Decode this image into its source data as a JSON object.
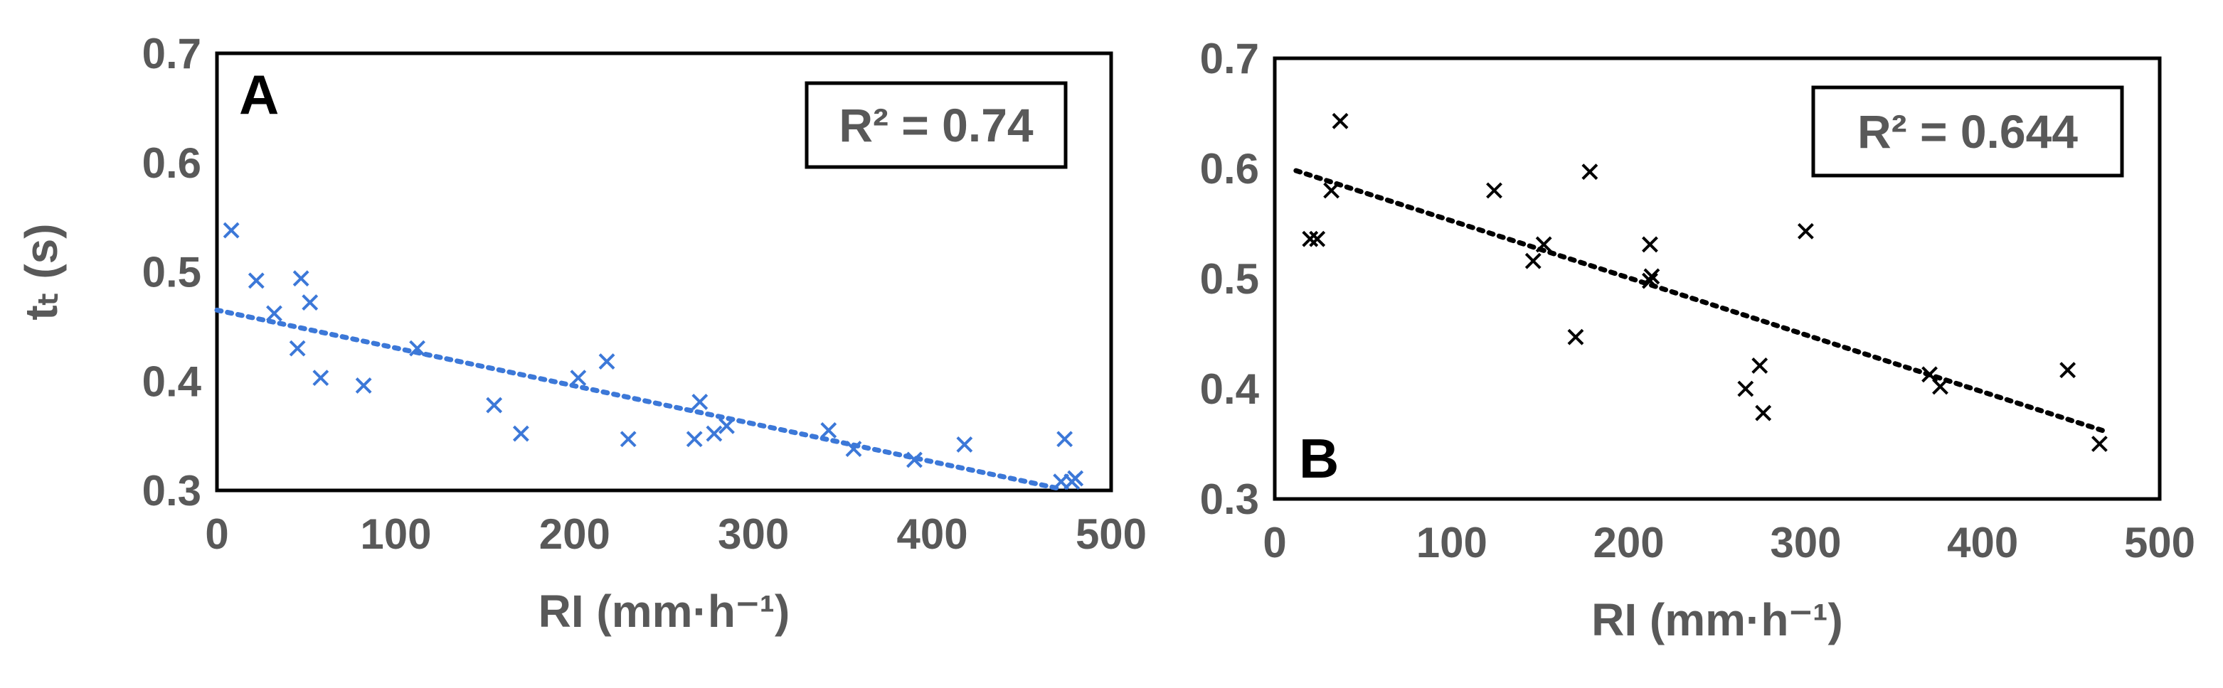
{
  "chart_data": [
    {
      "type": "scatter",
      "panel_label": "A",
      "annotation": "R² = 0.74",
      "xlabel": "RI (mm·h⁻¹)",
      "ylabel": "tₜ (s)",
      "xlim": [
        0,
        500
      ],
      "ylim": [
        0.3,
        0.7
      ],
      "x_ticks": [
        "0",
        "100",
        "200",
        "300",
        "400",
        "500"
      ],
      "y_ticks": [
        "0.3",
        "0.4",
        "0.5",
        "0.6",
        "0.7"
      ],
      "grid": false,
      "legend": "none",
      "marker_color": "#3C78D8",
      "trendline": {
        "type": "linear",
        "style": "dotted",
        "x": [
          0,
          470
        ],
        "y": [
          0.465,
          0.302
        ]
      },
      "series": [
        {
          "x": [
            8,
            22,
            32,
            45,
            47,
            52,
            58,
            82,
            112,
            155,
            170,
            202,
            218,
            230,
            267,
            270,
            278,
            285,
            342,
            356,
            390,
            418,
            472,
            474,
            478,
            480
          ],
          "y": [
            0.538,
            0.492,
            0.462,
            0.43,
            0.494,
            0.472,
            0.403,
            0.396,
            0.43,
            0.378,
            0.352,
            0.403,
            0.418,
            0.347,
            0.347,
            0.381,
            0.352,
            0.359,
            0.355,
            0.338,
            0.328,
            0.342,
            0.308,
            0.347,
            0.308,
            0.311
          ]
        }
      ]
    },
    {
      "type": "scatter",
      "panel_label": "B",
      "annotation": "R² = 0.644",
      "xlabel": "RI (mm·h⁻¹)",
      "ylabel": "",
      "xlim": [
        0,
        500
      ],
      "ylim": [
        0.3,
        0.7
      ],
      "x_ticks": [
        "0",
        "100",
        "200",
        "300",
        "400",
        "500"
      ],
      "y_ticks": [
        "0.3",
        "0.4",
        "0.5",
        "0.6",
        "0.7"
      ],
      "grid": false,
      "legend": "none",
      "marker_color": "#000000",
      "trendline": {
        "type": "linear",
        "style": "dotted",
        "x": [
          12,
          468
        ],
        "y": [
          0.598,
          0.362
        ]
      },
      "series": [
        {
          "x": [
            20,
            24,
            32,
            37,
            124,
            146,
            152,
            170,
            178,
            212,
            213,
            212,
            266,
            274,
            276,
            300,
            370,
            376,
            448,
            466
          ],
          "y": [
            0.536,
            0.536,
            0.58,
            0.643,
            0.58,
            0.516,
            0.531,
            0.447,
            0.597,
            0.531,
            0.502,
            0.498,
            0.4,
            0.421,
            0.378,
            0.543,
            0.413,
            0.402,
            0.417,
            0.35
          ]
        }
      ]
    }
  ]
}
